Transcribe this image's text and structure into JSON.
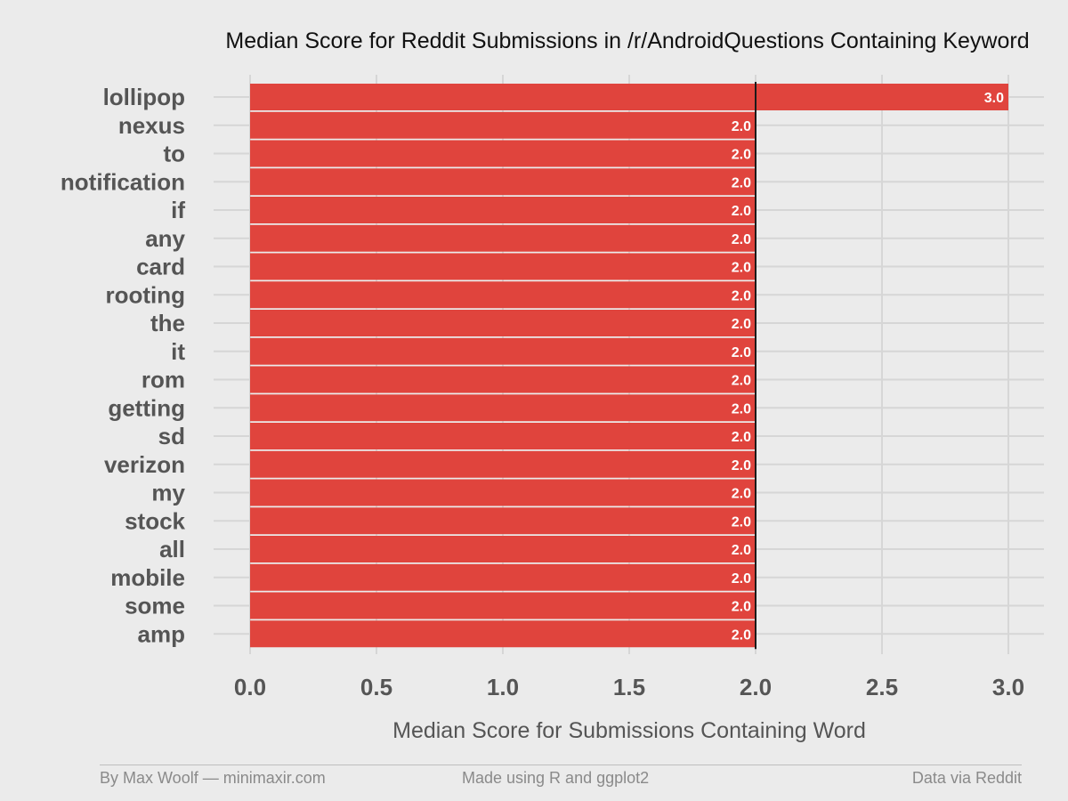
{
  "chart_data": {
    "type": "bar",
    "orientation": "horizontal",
    "title": "Median Score for Reddit Submissions in /r/AndroidQuestions Containing Keyword",
    "xlabel": "Median Score for Submissions Containing Word",
    "ylabel": "",
    "categories": [
      "lollipop",
      "nexus",
      "to",
      "notification",
      "if",
      "any",
      "card",
      "rooting",
      "the",
      "it",
      "rom",
      "getting",
      "sd",
      "verizon",
      "my",
      "stock",
      "all",
      "mobile",
      "some",
      "amp"
    ],
    "values": [
      3.0,
      2.0,
      2.0,
      2.0,
      2.0,
      2.0,
      2.0,
      2.0,
      2.0,
      2.0,
      2.0,
      2.0,
      2.0,
      2.0,
      2.0,
      2.0,
      2.0,
      2.0,
      2.0,
      2.0
    ],
    "value_labels": [
      "3.0",
      "2.0",
      "2.0",
      "2.0",
      "2.0",
      "2.0",
      "2.0",
      "2.0",
      "2.0",
      "2.0",
      "2.0",
      "2.0",
      "2.0",
      "2.0",
      "2.0",
      "2.0",
      "2.0",
      "2.0",
      "2.0",
      "2.0"
    ],
    "xlim": [
      0,
      3.0
    ],
    "x_ticks": [
      "0.0",
      "0.5",
      "1.0",
      "1.5",
      "2.0",
      "2.5",
      "3.0"
    ],
    "reference_line": 2.0,
    "grid": true,
    "bar_color": "#e0443d"
  },
  "footer": {
    "left": "By Max Woolf — minimaxir.com",
    "center": "Made using R and ggplot2",
    "right": "Data via Reddit"
  },
  "colors": {
    "background": "#ebebeb",
    "grid": "#d6d6d6",
    "text": "#555555",
    "title": "#111111",
    "bar_label": "#ffffff",
    "reference_line": "#1a1a1a"
  }
}
